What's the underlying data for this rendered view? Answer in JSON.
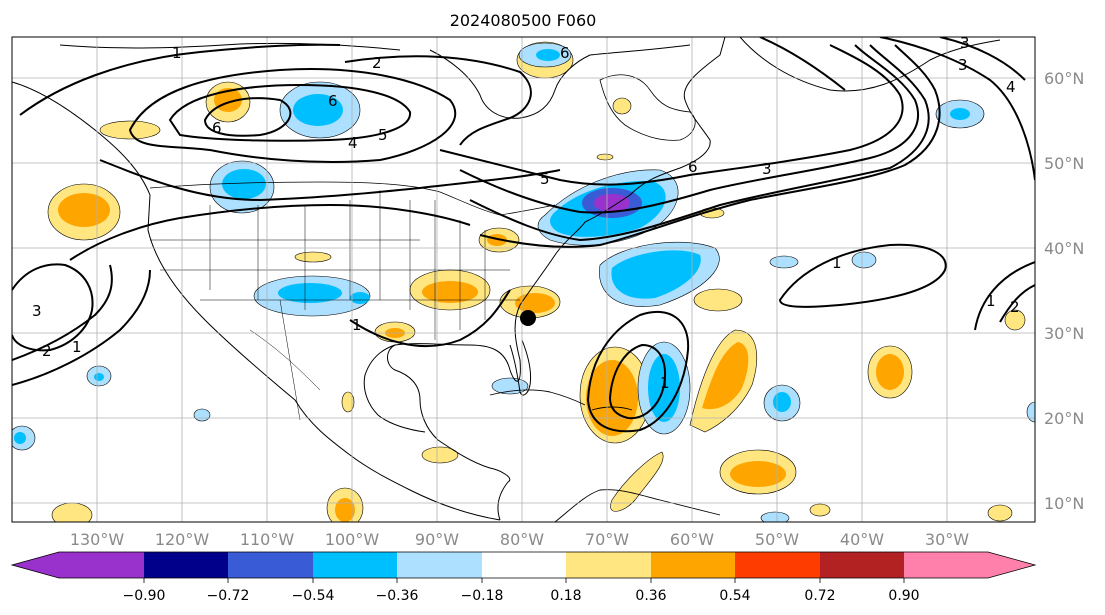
{
  "title": "2024080500 F060",
  "lon_labels": [
    "130°W",
    "120°W",
    "110°W",
    "100°W",
    "90°W",
    "80°W",
    "70°W",
    "60°W",
    "50°W",
    "40°W",
    "30°W"
  ],
  "lat_labels": [
    "60°N",
    "50°N",
    "40°N",
    "30°N",
    "20°N",
    "10°N"
  ],
  "colorbar": {
    "tick_labels": [
      "−0.90",
      "−0.72",
      "−0.54",
      "−0.36",
      "−0.18",
      "0.18",
      "0.36",
      "0.54",
      "0.72",
      "0.90"
    ],
    "colors": [
      "#9932CC",
      "#00008B",
      "#3A5BD6",
      "#00BFFF",
      "#ADDFFF",
      "#FFFFFF",
      "#FFE680",
      "#FFA500",
      "#FF3C00",
      "#B22222",
      "#FF80AA"
    ]
  },
  "contour_labels": [
    "1",
    "2",
    "6",
    "6",
    "5",
    "5",
    "4",
    "3",
    "1",
    "1",
    "2",
    "3",
    "3",
    "1",
    "1",
    "2",
    "6",
    "4",
    "6",
    "3",
    "1"
  ],
  "map_colors": {
    "grid": "#b0b0b0",
    "land_outline": "#000000",
    "contour": "#000000"
  }
}
